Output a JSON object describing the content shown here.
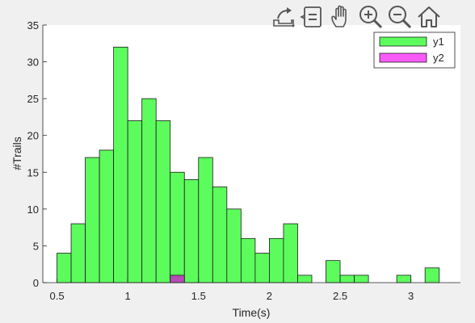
{
  "toolbar": {
    "icons": [
      "export-icon",
      "datatip-icon",
      "pan-hand-icon",
      "zoom-in-icon",
      "zoom-out-icon",
      "home-icon"
    ]
  },
  "chart_data": {
    "type": "bar",
    "subtype": "histogram",
    "title": "",
    "xlabel": "Time(s)",
    "ylabel": "#Trails",
    "xlim": [
      0.4,
      3.35
    ],
    "ylim": [
      0,
      35
    ],
    "xticks": [
      0.5,
      1,
      1.5,
      2,
      2.5,
      3
    ],
    "yticks": [
      0,
      5,
      10,
      15,
      20,
      25,
      30,
      35
    ],
    "xtick_labels": [
      "0.5",
      "1",
      "1.5",
      "2",
      "2.5",
      "3"
    ],
    "ytick_labels": [
      "0",
      "5",
      "10",
      "15",
      "20",
      "25",
      "30",
      "35"
    ],
    "bin_width": 0.1,
    "grid": false,
    "legend_position": "top-right",
    "series": [
      {
        "name": "y1",
        "color": "#5dfc5d",
        "bins": [
          {
            "x": 0.5,
            "y": 4
          },
          {
            "x": 0.6,
            "y": 8
          },
          {
            "x": 0.7,
            "y": 17
          },
          {
            "x": 0.8,
            "y": 18
          },
          {
            "x": 0.9,
            "y": 32
          },
          {
            "x": 1.0,
            "y": 22
          },
          {
            "x": 1.1,
            "y": 25
          },
          {
            "x": 1.2,
            "y": 22
          },
          {
            "x": 1.3,
            "y": 15
          },
          {
            "x": 1.4,
            "y": 14
          },
          {
            "x": 1.5,
            "y": 17
          },
          {
            "x": 1.6,
            "y": 13
          },
          {
            "x": 1.7,
            "y": 10
          },
          {
            "x": 1.8,
            "y": 6
          },
          {
            "x": 1.9,
            "y": 4
          },
          {
            "x": 2.0,
            "y": 6
          },
          {
            "x": 2.1,
            "y": 8
          },
          {
            "x": 2.2,
            "y": 1
          },
          {
            "x": 2.3,
            "y": 0
          },
          {
            "x": 2.4,
            "y": 3
          },
          {
            "x": 2.5,
            "y": 1
          },
          {
            "x": 2.6,
            "y": 1
          },
          {
            "x": 2.7,
            "y": 0
          },
          {
            "x": 2.8,
            "y": 0
          },
          {
            "x": 2.9,
            "y": 1
          },
          {
            "x": 3.0,
            "y": 0
          },
          {
            "x": 3.1,
            "y": 2
          }
        ]
      },
      {
        "name": "y2",
        "color": "#f85cf8",
        "overlap_color": "#b64cb6",
        "bins": [
          {
            "x": 1.3,
            "y": 1
          }
        ]
      }
    ]
  }
}
